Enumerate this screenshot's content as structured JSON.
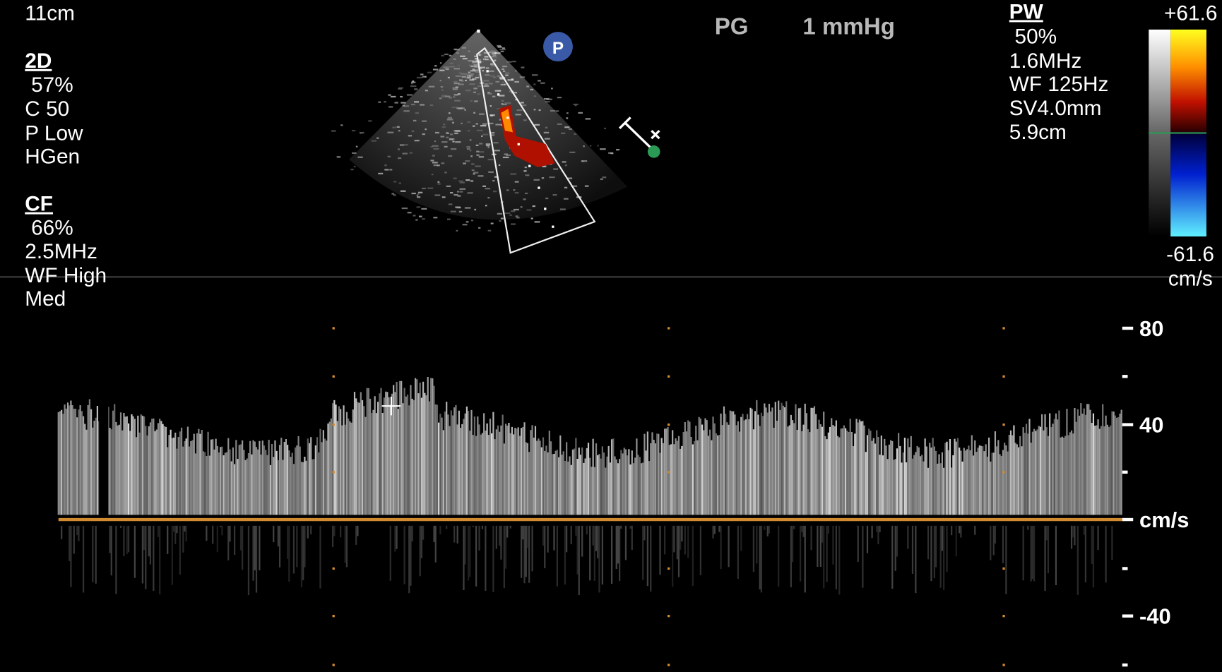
{
  "left_panel": {
    "depth": "11cm",
    "mode_2d": {
      "heading": "2D",
      "lines": [
        "57%",
        "C 50",
        "P Low",
        "HGen"
      ]
    },
    "mode_cf": {
      "heading": "CF",
      "lines": [
        "66%",
        "2.5MHz",
        "WF High",
        "Med"
      ]
    }
  },
  "top_readout": {
    "label": "PG",
    "value": "1 mmHg"
  },
  "right_panel": {
    "heading": "PW",
    "lines": [
      "50%",
      "1.6MHz",
      "WF 125Hz",
      "SV4.0mm",
      "5.9cm"
    ]
  },
  "color_bar": {
    "max": "+61.6",
    "min": "-61.6",
    "unit": "cm/s"
  },
  "doppler_scale": {
    "labels": [
      "80",
      "40",
      "cm/s",
      "-40"
    ]
  }
}
